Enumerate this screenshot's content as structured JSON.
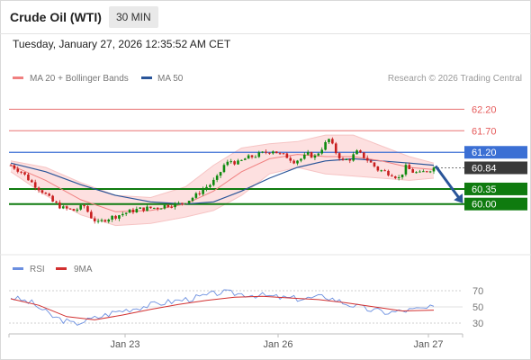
{
  "header": {
    "title": "Crude Oil (WTI)",
    "timeframe": "30 MIN",
    "datetime": "Tuesday, January 27, 2026 12:35:52 AM CET"
  },
  "legend": {
    "ma20_bb": "MA 20 + Bollinger Bands",
    "ma50": "MA 50",
    "credit": "Research © 2026 Trading Central",
    "rsi": "RSI",
    "rsi_ma": "9MA"
  },
  "colors": {
    "up": "#0e8a0e",
    "down": "#c81e1e",
    "ma20": "#f08080",
    "ma50": "#2a5599",
    "bb_fill": "#fde0e0",
    "resistance": "#e55a5a",
    "pivot": "#3b6fd4",
    "support": "#0f7b0f",
    "last": "#3a3a3a",
    "rsi": "#6b8fe0",
    "rsi_ma": "#d23030"
  },
  "chart_data": [
    {
      "type": "candlestick",
      "x_labels": [
        "Jan 23",
        "Jan 26",
        "Jan 27"
      ],
      "ylim": [
        59.2,
        62.5
      ],
      "grid": false,
      "levels": [
        {
          "value": 62.2,
          "label": "62.20",
          "role": "resistance"
        },
        {
          "value": 61.7,
          "label": "61.70",
          "role": "resistance"
        },
        {
          "value": 61.2,
          "label": "61.20",
          "role": "pivot"
        },
        {
          "value": 60.35,
          "label": "60.35",
          "role": "support"
        },
        {
          "value": 60.0,
          "label": "60.00",
          "role": "support"
        }
      ],
      "last_price": {
        "value": 60.84,
        "label": "60.84"
      },
      "forecast": {
        "from": 60.84,
        "to": 60.0,
        "direction": "down"
      },
      "series_path": [
        {
          "x": 0,
          "y": 60.9
        },
        {
          "x": 3,
          "y": 60.75
        },
        {
          "x": 6,
          "y": 60.5
        },
        {
          "x": 9,
          "y": 60.3
        },
        {
          "x": 12,
          "y": 60.05
        },
        {
          "x": 15,
          "y": 59.9
        },
        {
          "x": 18,
          "y": 59.85
        },
        {
          "x": 21,
          "y": 59.95
        },
        {
          "x": 23,
          "y": 59.7
        },
        {
          "x": 25,
          "y": 59.55
        },
        {
          "x": 27,
          "y": 59.65
        },
        {
          "x": 30,
          "y": 59.72
        },
        {
          "x": 33,
          "y": 59.8
        },
        {
          "x": 36,
          "y": 59.87
        },
        {
          "x": 39,
          "y": 59.9
        },
        {
          "x": 42,
          "y": 59.92
        },
        {
          "x": 45,
          "y": 59.98
        },
        {
          "x": 48,
          "y": 60.0
        },
        {
          "x": 51,
          "y": 60.1
        },
        {
          "x": 53,
          "y": 60.2
        },
        {
          "x": 55,
          "y": 60.35
        },
        {
          "x": 57,
          "y": 60.45
        },
        {
          "x": 59,
          "y": 60.6
        },
        {
          "x": 61,
          "y": 60.9
        },
        {
          "x": 63,
          "y": 61.0
        },
        {
          "x": 65,
          "y": 60.95
        },
        {
          "x": 67,
          "y": 61.05
        },
        {
          "x": 69,
          "y": 61.1
        },
        {
          "x": 71,
          "y": 61.15
        },
        {
          "x": 73,
          "y": 61.2
        },
        {
          "x": 75,
          "y": 61.25
        },
        {
          "x": 77,
          "y": 61.15
        },
        {
          "x": 79,
          "y": 61.1
        },
        {
          "x": 81,
          "y": 61.0
        },
        {
          "x": 83,
          "y": 61.05
        },
        {
          "x": 85,
          "y": 61.15
        },
        {
          "x": 87,
          "y": 61.1
        },
        {
          "x": 89,
          "y": 61.3
        },
        {
          "x": 91,
          "y": 61.5
        },
        {
          "x": 93,
          "y": 61.2
        },
        {
          "x": 95,
          "y": 61.0
        },
        {
          "x": 97,
          "y": 61.05
        },
        {
          "x": 99,
          "y": 61.2
        },
        {
          "x": 101,
          "y": 61.1
        },
        {
          "x": 103,
          "y": 60.95
        },
        {
          "x": 105,
          "y": 60.8
        },
        {
          "x": 107,
          "y": 60.75
        },
        {
          "x": 109,
          "y": 60.7
        },
        {
          "x": 111,
          "y": 60.6
        },
        {
          "x": 113,
          "y": 60.85
        },
        {
          "x": 115,
          "y": 60.75
        },
        {
          "x": 117,
          "y": 60.7
        },
        {
          "x": 119,
          "y": 60.78
        },
        {
          "x": 121,
          "y": 60.84
        }
      ],
      "ma20": [
        {
          "x": 0,
          "y": 60.9
        },
        {
          "x": 10,
          "y": 60.55
        },
        {
          "x": 20,
          "y": 60.1
        },
        {
          "x": 30,
          "y": 59.82
        },
        {
          "x": 40,
          "y": 59.85
        },
        {
          "x": 50,
          "y": 60.0
        },
        {
          "x": 58,
          "y": 60.3
        },
        {
          "x": 66,
          "y": 60.75
        },
        {
          "x": 74,
          "y": 61.05
        },
        {
          "x": 82,
          "y": 61.15
        },
        {
          "x": 90,
          "y": 61.1
        },
        {
          "x": 98,
          "y": 61.1
        },
        {
          "x": 106,
          "y": 61.0
        },
        {
          "x": 114,
          "y": 60.85
        },
        {
          "x": 121,
          "y": 60.8
        }
      ],
      "bollinger_upper": [
        {
          "x": 0,
          "y": 61.0
        },
        {
          "x": 10,
          "y": 60.85
        },
        {
          "x": 20,
          "y": 60.5
        },
        {
          "x": 30,
          "y": 60.2
        },
        {
          "x": 40,
          "y": 60.15
        },
        {
          "x": 50,
          "y": 60.4
        },
        {
          "x": 58,
          "y": 60.9
        },
        {
          "x": 66,
          "y": 61.3
        },
        {
          "x": 74,
          "y": 61.4
        },
        {
          "x": 82,
          "y": 61.45
        },
        {
          "x": 90,
          "y": 61.6
        },
        {
          "x": 98,
          "y": 61.6
        },
        {
          "x": 106,
          "y": 61.35
        },
        {
          "x": 114,
          "y": 61.1
        },
        {
          "x": 121,
          "y": 60.95
        }
      ],
      "bollinger_lower": [
        {
          "x": 0,
          "y": 60.75
        },
        {
          "x": 10,
          "y": 60.2
        },
        {
          "x": 20,
          "y": 59.75
        },
        {
          "x": 30,
          "y": 59.5
        },
        {
          "x": 40,
          "y": 59.55
        },
        {
          "x": 50,
          "y": 59.7
        },
        {
          "x": 58,
          "y": 59.85
        },
        {
          "x": 66,
          "y": 60.2
        },
        {
          "x": 74,
          "y": 60.7
        },
        {
          "x": 82,
          "y": 60.85
        },
        {
          "x": 90,
          "y": 60.7
        },
        {
          "x": 98,
          "y": 60.65
        },
        {
          "x": 106,
          "y": 60.6
        },
        {
          "x": 114,
          "y": 60.55
        },
        {
          "x": 121,
          "y": 60.6
        }
      ],
      "ma50": [
        {
          "x": 0,
          "y": 60.95
        },
        {
          "x": 10,
          "y": 60.75
        },
        {
          "x": 20,
          "y": 60.45
        },
        {
          "x": 30,
          "y": 60.2
        },
        {
          "x": 40,
          "y": 60.05
        },
        {
          "x": 50,
          "y": 60.0
        },
        {
          "x": 58,
          "y": 60.05
        },
        {
          "x": 66,
          "y": 60.3
        },
        {
          "x": 74,
          "y": 60.6
        },
        {
          "x": 82,
          "y": 60.85
        },
        {
          "x": 90,
          "y": 61.0
        },
        {
          "x": 98,
          "y": 61.05
        },
        {
          "x": 106,
          "y": 61.0
        },
        {
          "x": 114,
          "y": 60.95
        },
        {
          "x": 121,
          "y": 60.9
        }
      ]
    },
    {
      "type": "line",
      "ylim": [
        20,
        80
      ],
      "y_ticks": [
        70,
        50,
        30
      ],
      "rsi": [
        {
          "x": 0,
          "y": 62
        },
        {
          "x": 6,
          "y": 55
        },
        {
          "x": 12,
          "y": 38
        },
        {
          "x": 18,
          "y": 29
        },
        {
          "x": 24,
          "y": 36
        },
        {
          "x": 30,
          "y": 44
        },
        {
          "x": 36,
          "y": 49
        },
        {
          "x": 42,
          "y": 54
        },
        {
          "x": 48,
          "y": 58
        },
        {
          "x": 54,
          "y": 62
        },
        {
          "x": 60,
          "y": 68
        },
        {
          "x": 66,
          "y": 66
        },
        {
          "x": 72,
          "y": 64
        },
        {
          "x": 78,
          "y": 61
        },
        {
          "x": 84,
          "y": 60
        },
        {
          "x": 90,
          "y": 63
        },
        {
          "x": 96,
          "y": 54
        },
        {
          "x": 102,
          "y": 47
        },
        {
          "x": 108,
          "y": 43
        },
        {
          "x": 114,
          "y": 46
        },
        {
          "x": 121,
          "y": 49
        }
      ],
      "rsi_ma": [
        {
          "x": 0,
          "y": 60
        },
        {
          "x": 8,
          "y": 52
        },
        {
          "x": 16,
          "y": 38
        },
        {
          "x": 24,
          "y": 34
        },
        {
          "x": 32,
          "y": 40
        },
        {
          "x": 40,
          "y": 47
        },
        {
          "x": 48,
          "y": 53
        },
        {
          "x": 56,
          "y": 58
        },
        {
          "x": 64,
          "y": 62
        },
        {
          "x": 72,
          "y": 63
        },
        {
          "x": 80,
          "y": 61
        },
        {
          "x": 88,
          "y": 59
        },
        {
          "x": 96,
          "y": 55
        },
        {
          "x": 104,
          "y": 50
        },
        {
          "x": 112,
          "y": 45
        },
        {
          "x": 121,
          "y": 46
        }
      ]
    }
  ]
}
